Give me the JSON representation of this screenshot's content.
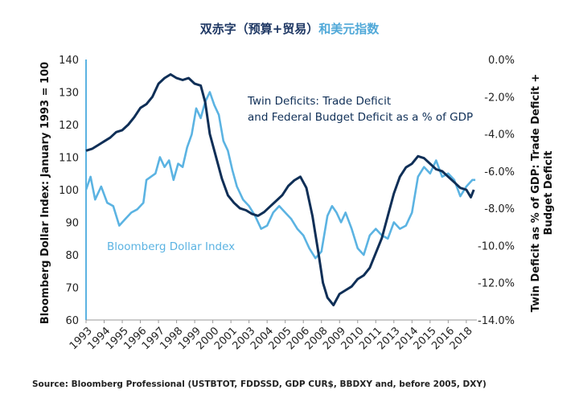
{
  "chart_data": {
    "type": "line",
    "title_part1": "双赤字（预算+贸易）",
    "title_part2": "和美元指数",
    "ylabel_left": "Bloomberg Dollar Index: January 1993 = 100",
    "ylabel_right_line1": "Twin Deficit as % of GDP: Trade Deficit +",
    "ylabel_right_line2": "Budget Deficit",
    "source": "Source: Bloomberg Professional (USTBTOT, FDDSSD, GDP CUR$, BBDXY and, before 2005, DXY)",
    "xlim": [
      1993,
      2018.9
    ],
    "ylim_left": [
      60,
      140
    ],
    "ylim_right": [
      -14,
      0
    ],
    "x_ticks": [
      "1993",
      "1994",
      "1995",
      "1996",
      "1997",
      "1998",
      "1999",
      "2000",
      "2001",
      "2003",
      "2004",
      "2005",
      "2006",
      "2008",
      "2009",
      "2010",
      "2011",
      "2013",
      "2014",
      "2015",
      "2016",
      "2018"
    ],
    "x_tick_positions": [
      1993.0,
      1994.2,
      1995.4,
      1996.6,
      1997.8,
      1999.0,
      2000.2,
      2001.4,
      2002.6,
      2003.8,
      2005.0,
      2006.2,
      2007.4,
      2008.6,
      2009.8,
      2011.0,
      2012.2,
      2013.4,
      2014.6,
      2015.8,
      2017.0,
      2018.2
    ],
    "left_ticks": [
      "140",
      "130",
      "120",
      "110",
      "100",
      "90",
      "80",
      "70",
      "60"
    ],
    "right_ticks": [
      "0.0%",
      "-2.0%",
      "-4.0%",
      "-6.0%",
      "-8.0%",
      "-10.0%",
      "-12.0%",
      "-14.0%"
    ],
    "colors": {
      "title_dark": "#1f3864",
      "title_light": "#4fa8d8",
      "dollar": "#5bb3e2",
      "twin": "#0f2f57"
    },
    "series": [
      {
        "name": "Bloomberg Dollar Index",
        "axis": "left",
        "label_line1": "Bloomberg Dollar Index",
        "points": [
          [
            1993.0,
            100
          ],
          [
            1993.3,
            104
          ],
          [
            1993.6,
            97
          ],
          [
            1994.0,
            101
          ],
          [
            1994.4,
            96
          ],
          [
            1994.8,
            95
          ],
          [
            1995.2,
            89
          ],
          [
            1995.6,
            91
          ],
          [
            1996.0,
            93
          ],
          [
            1996.4,
            94
          ],
          [
            1996.8,
            96
          ],
          [
            1997.0,
            103
          ],
          [
            1997.3,
            104
          ],
          [
            1997.6,
            105
          ],
          [
            1997.9,
            110
          ],
          [
            1998.2,
            107
          ],
          [
            1998.5,
            109
          ],
          [
            1998.8,
            103
          ],
          [
            1999.1,
            108
          ],
          [
            1999.4,
            107
          ],
          [
            1999.7,
            113
          ],
          [
            2000.0,
            117
          ],
          [
            2000.3,
            125
          ],
          [
            2000.6,
            122
          ],
          [
            2000.9,
            127
          ],
          [
            2001.2,
            130
          ],
          [
            2001.5,
            126
          ],
          [
            2001.8,
            123
          ],
          [
            2002.1,
            115
          ],
          [
            2002.4,
            112
          ],
          [
            2002.7,
            106
          ],
          [
            2003.0,
            101
          ],
          [
            2003.4,
            97
          ],
          [
            2003.8,
            95
          ],
          [
            2004.2,
            92
          ],
          [
            2004.6,
            88
          ],
          [
            2005.0,
            89
          ],
          [
            2005.4,
            93
          ],
          [
            2005.8,
            95
          ],
          [
            2006.2,
            93
          ],
          [
            2006.6,
            91
          ],
          [
            2007.0,
            88
          ],
          [
            2007.4,
            86
          ],
          [
            2007.8,
            82
          ],
          [
            2008.2,
            79
          ],
          [
            2008.6,
            81
          ],
          [
            2009.0,
            92
          ],
          [
            2009.3,
            95
          ],
          [
            2009.6,
            93
          ],
          [
            2009.9,
            90
          ],
          [
            2010.2,
            93
          ],
          [
            2010.6,
            88
          ],
          [
            2011.0,
            82
          ],
          [
            2011.4,
            80
          ],
          [
            2011.8,
            86
          ],
          [
            2012.2,
            88
          ],
          [
            2012.6,
            86
          ],
          [
            2013.0,
            85
          ],
          [
            2013.4,
            90
          ],
          [
            2013.8,
            88
          ],
          [
            2014.2,
            89
          ],
          [
            2014.6,
            93
          ],
          [
            2015.0,
            104
          ],
          [
            2015.4,
            107
          ],
          [
            2015.8,
            105
          ],
          [
            2016.2,
            109
          ],
          [
            2016.6,
            104
          ],
          [
            2017.0,
            105
          ],
          [
            2017.4,
            103
          ],
          [
            2017.8,
            98
          ],
          [
            2018.2,
            101
          ],
          [
            2018.6,
            103
          ],
          [
            2018.8,
            103
          ]
        ]
      },
      {
        "name": "Twin Deficits: Trade Deficit and Federal Budget Deficit as a % of GDP",
        "axis": "right",
        "label_line1": "Twin Deficits: Trade Deficit",
        "label_line2": "and Federal Budget Deficit as a % of GDP",
        "points": [
          [
            1993.0,
            -4.9
          ],
          [
            1993.4,
            -4.8
          ],
          [
            1993.8,
            -4.6
          ],
          [
            1994.2,
            -4.4
          ],
          [
            1994.6,
            -4.2
          ],
          [
            1995.0,
            -3.9
          ],
          [
            1995.4,
            -3.8
          ],
          [
            1995.8,
            -3.5
          ],
          [
            1996.2,
            -3.1
          ],
          [
            1996.6,
            -2.6
          ],
          [
            1997.0,
            -2.4
          ],
          [
            1997.4,
            -2.0
          ],
          [
            1997.8,
            -1.3
          ],
          [
            1998.2,
            -1.0
          ],
          [
            1998.6,
            -0.8
          ],
          [
            1999.0,
            -1.0
          ],
          [
            1999.4,
            -1.1
          ],
          [
            1999.8,
            -1.0
          ],
          [
            2000.2,
            -1.3
          ],
          [
            2000.6,
            -1.4
          ],
          [
            2000.9,
            -2.3
          ],
          [
            2001.2,
            -4.0
          ],
          [
            2001.6,
            -5.2
          ],
          [
            2002.0,
            -6.4
          ],
          [
            2002.4,
            -7.3
          ],
          [
            2002.8,
            -7.7
          ],
          [
            2003.2,
            -8.0
          ],
          [
            2003.6,
            -8.1
          ],
          [
            2004.0,
            -8.3
          ],
          [
            2004.4,
            -8.4
          ],
          [
            2004.8,
            -8.2
          ],
          [
            2005.2,
            -7.9
          ],
          [
            2005.6,
            -7.6
          ],
          [
            2006.0,
            -7.3
          ],
          [
            2006.4,
            -6.8
          ],
          [
            2006.8,
            -6.5
          ],
          [
            2007.2,
            -6.3
          ],
          [
            2007.6,
            -6.9
          ],
          [
            2008.0,
            -8.4
          ],
          [
            2008.4,
            -10.4
          ],
          [
            2008.7,
            -12.0
          ],
          [
            2009.0,
            -12.8
          ],
          [
            2009.4,
            -13.2
          ],
          [
            2009.8,
            -12.6
          ],
          [
            2010.2,
            -12.4
          ],
          [
            2010.6,
            -12.2
          ],
          [
            2011.0,
            -11.8
          ],
          [
            2011.4,
            -11.6
          ],
          [
            2011.8,
            -11.2
          ],
          [
            2012.2,
            -10.4
          ],
          [
            2012.6,
            -9.6
          ],
          [
            2013.0,
            -8.4
          ],
          [
            2013.4,
            -7.2
          ],
          [
            2013.8,
            -6.3
          ],
          [
            2014.2,
            -5.8
          ],
          [
            2014.6,
            -5.6
          ],
          [
            2015.0,
            -5.2
          ],
          [
            2015.4,
            -5.3
          ],
          [
            2015.8,
            -5.6
          ],
          [
            2016.2,
            -5.9
          ],
          [
            2016.6,
            -6.0
          ],
          [
            2017.0,
            -6.3
          ],
          [
            2017.4,
            -6.6
          ],
          [
            2017.8,
            -6.9
          ],
          [
            2018.2,
            -7.0
          ],
          [
            2018.5,
            -7.4
          ],
          [
            2018.7,
            -7.0
          ]
        ]
      }
    ]
  }
}
